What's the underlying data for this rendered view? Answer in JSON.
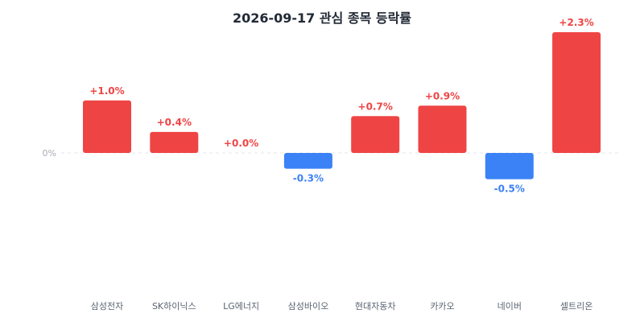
{
  "chart_data": {
    "type": "bar",
    "title": "2026-09-17 관심 종목 등락률",
    "xlabel": "",
    "ylabel": "",
    "categories": [
      "삼성전자",
      "SK하이닉스",
      "LG에너지",
      "삼성바이오",
      "현대자동차",
      "카카오",
      "네이버",
      "셀트리온"
    ],
    "values": [
      1.0,
      0.4,
      0.0,
      -0.3,
      0.7,
      0.9,
      -0.5,
      2.3
    ],
    "value_labels": [
      "+1.0%",
      "+0.4%",
      "+0.0%",
      "-0.3%",
      "+0.7%",
      "+0.9%",
      "-0.5%",
      "+2.3%"
    ],
    "y_zero_label": "0%",
    "ylim": [
      -2.6,
      2.3
    ],
    "grid": false,
    "zero_line": "dashed",
    "colors": {
      "positive": "#ef4444",
      "negative": "#3b82f6",
      "zero_line": "#e5e7eb"
    }
  }
}
